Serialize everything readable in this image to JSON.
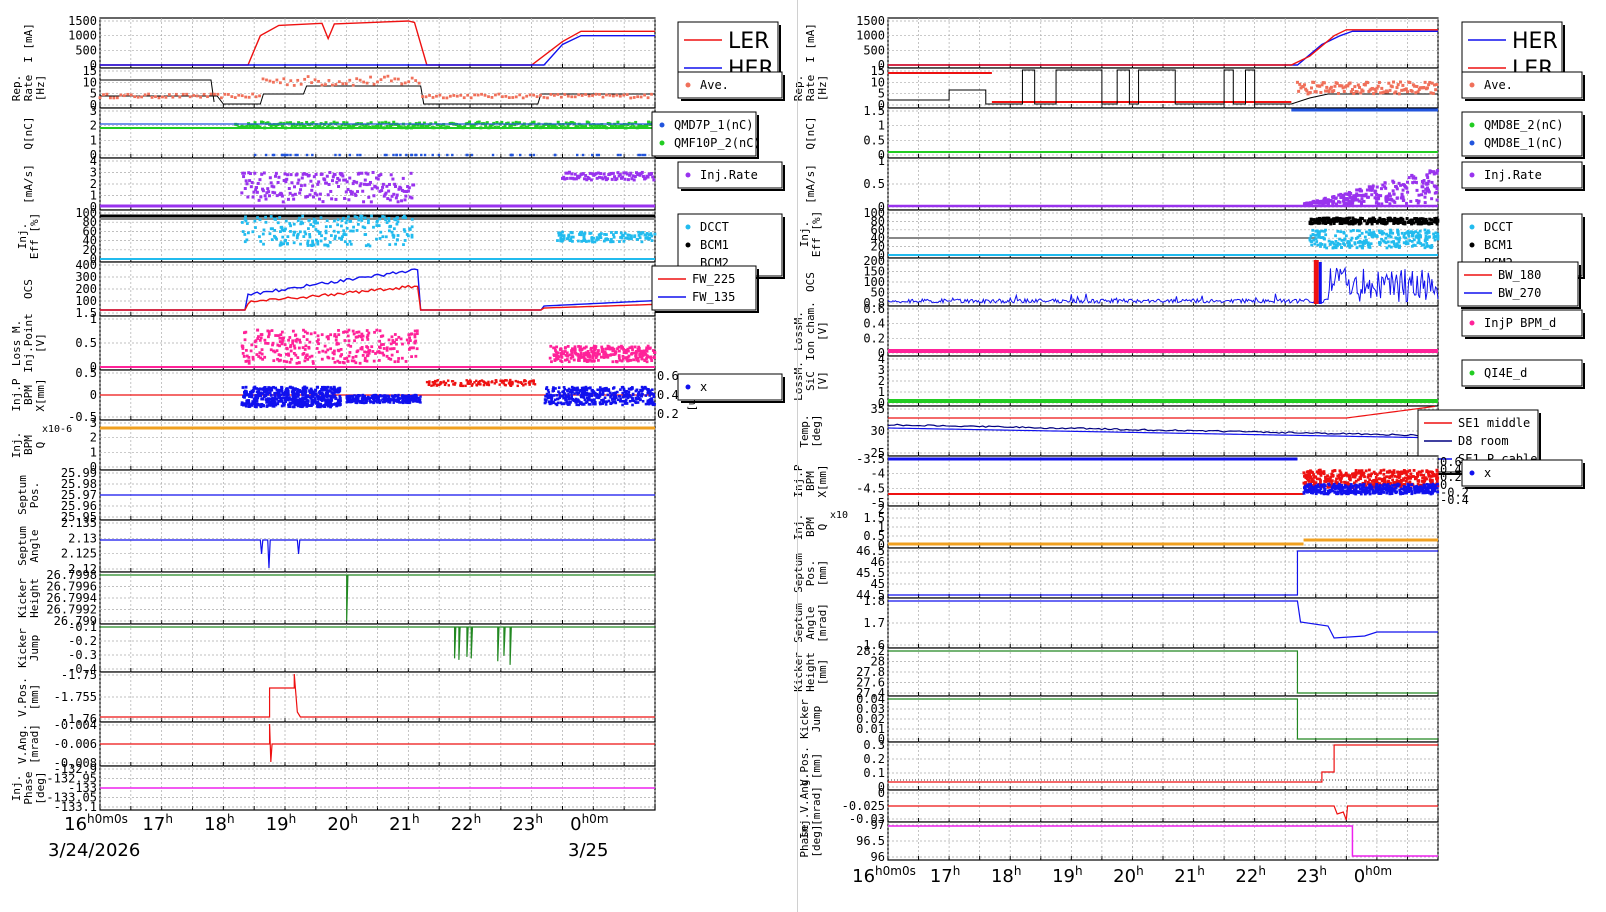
{
  "colors": {
    "red": "#ee1111",
    "blue": "#1111ee",
    "green": "#22cc22",
    "blue_dots": "#2255dd",
    "purple": "#9933ee",
    "cyan": "#22bbee",
    "black": "#000000",
    "grey": "#888888",
    "salmon": "#f0705a",
    "pink": "#ff2299",
    "orange": "#f0a020",
    "magenta": "#ee22ee",
    "dgreen": "#228822",
    "navy": "#000080",
    "ion": "#6666ff"
  },
  "left": {
    "xticks": [
      "16h0m0s",
      "17h",
      "18h",
      "19h",
      "20h",
      "21h",
      "22h",
      "23h",
      "0h0m"
    ],
    "date_labels": [
      "3/24/2026",
      "3/25"
    ],
    "panels": [
      {
        "id": "current",
        "ylabel": [
          "I [mA]"
        ],
        "yticks": [
          "1500",
          "1000",
          "500",
          "0"
        ],
        "legend": [
          {
            "name": "LER",
            "color": "red",
            "kind": "line"
          },
          {
            "name": "HER",
            "color": "blue",
            "kind": "line"
          }
        ]
      },
      {
        "id": "rep",
        "ylabel": [
          "Rep.",
          "Rate",
          "[Hz]"
        ],
        "yticks": [
          "15",
          "10",
          "5",
          "0"
        ],
        "legend": [
          {
            "name": "Ave.",
            "color": "salmon",
            "kind": "dot"
          }
        ]
      },
      {
        "id": "q",
        "ylabel": [
          "Q[nC]"
        ],
        "yticks": [
          "3",
          "2",
          "1",
          "0"
        ],
        "legend": [
          {
            "name": "QMD7P_1(nC)",
            "color": "blue_dots",
            "kind": "dot"
          },
          {
            "name": "QMF10P_2(nC)",
            "color": "green",
            "kind": "dot"
          }
        ]
      },
      {
        "id": "injrate",
        "ylabel": [
          "[mA/s]"
        ],
        "yticks": [
          "4",
          "3",
          "2",
          "1",
          "0"
        ],
        "legend": [
          {
            "name": "Inj.Rate",
            "color": "purple",
            "kind": "dot"
          }
        ]
      },
      {
        "id": "eff",
        "ylabel": [
          "Inj.",
          "Eff [%]"
        ],
        "yticks": [
          "100",
          "80",
          "60",
          "40",
          "20",
          "0"
        ],
        "legend": [
          {
            "name": "DCCT",
            "color": "cyan",
            "kind": "dot"
          },
          {
            "name": "BCM1",
            "color": "black",
            "kind": "dot"
          },
          {
            "name": "BCM2",
            "color": "grey",
            "kind": "none"
          }
        ]
      },
      {
        "id": "ocs",
        "ylabel": [
          "OCS"
        ],
        "yticks": [
          "400",
          "300",
          "200",
          "100",
          "1.5"
        ],
        "legend": [
          {
            "name": "FW_225",
            "color": "red",
            "kind": "line"
          },
          {
            "name": "FW_135",
            "color": "blue",
            "kind": "line"
          }
        ]
      },
      {
        "id": "lossm",
        "ylabel": [
          "Loss M.",
          "Inj.Point",
          "[V]"
        ],
        "yticks": [
          "1",
          "0.5",
          "0"
        ],
        "legend": []
      },
      {
        "id": "bpm",
        "ylabel": [
          "Inj.P",
          "BPM",
          "X[mm]"
        ],
        "yticks": [
          "0.5",
          "0",
          "-0.5"
        ],
        "ylabel_right": "Y[mm]",
        "yticks_right": [
          "0.6",
          "0.4",
          "0.2"
        ],
        "legend": [
          {
            "name": "x",
            "color": "blue",
            "kind": "dot"
          }
        ]
      },
      {
        "id": "bpmq",
        "ylabel": [
          "Inj.",
          "BPM",
          "Q"
        ],
        "yticks": [
          "3",
          "2",
          "1",
          "0"
        ],
        "exp": "x10-6",
        "legend": []
      },
      {
        "id": "seppos",
        "ylabel": [
          "Septum",
          "Pos."
        ],
        "yticks": [
          "25.99",
          "25.98",
          "25.97",
          "25.96",
          "25.95"
        ],
        "legend": []
      },
      {
        "id": "sepang",
        "ylabel": [
          "Septum",
          "Angle"
        ],
        "yticks": [
          "2.135",
          "2.13",
          "2.125",
          "2.12"
        ],
        "legend": []
      },
      {
        "id": "kheight",
        "ylabel": [
          "Kicker",
          "Height"
        ],
        "yticks": [
          "26.7998",
          "26.7996",
          "26.7994",
          "26.7992",
          "26.799"
        ],
        "legend": []
      },
      {
        "id": "kjump",
        "ylabel": [
          "Kicker",
          "Jump"
        ],
        "yticks": [
          "-0.1",
          "-0.2",
          "-0.3",
          "-0.4"
        ],
        "legend": []
      },
      {
        "id": "vpos",
        "ylabel": [
          "V.Pos.",
          "[mm]"
        ],
        "yticks": [
          "-1.75",
          "-1.755",
          "-1.76"
        ],
        "legend": []
      },
      {
        "id": "vang",
        "ylabel": [
          "V.Ang.",
          "[mrad]"
        ],
        "yticks": [
          "-0.004",
          "-0.006",
          "-0.008"
        ],
        "legend": []
      },
      {
        "id": "phase",
        "ylabel": [
          "Inj.",
          "Phase",
          "[deg]"
        ],
        "yticks": [
          "-132.9",
          "-132.95",
          "-133",
          "-133.05",
          "-133.1"
        ],
        "legend": []
      }
    ]
  },
  "right": {
    "xticks": [
      "16h0m0s",
      "17h",
      "18h",
      "19h",
      "20h",
      "21h",
      "22h",
      "23h",
      "0h0m"
    ],
    "panels": [
      {
        "id": "current",
        "ylabel": [
          "I [mA]"
        ],
        "yticks": [
          "1500",
          "1000",
          "500",
          "0"
        ],
        "legend": [
          {
            "name": "HER",
            "color": "blue",
            "kind": "line"
          },
          {
            "name": "LER",
            "color": "red",
            "kind": "line"
          }
        ]
      },
      {
        "id": "rep",
        "ylabel": [
          "Rep.",
          "Rate",
          "[Hz]"
        ],
        "yticks": [
          "15",
          "10",
          "5",
          "0"
        ],
        "legend": [
          {
            "name": "Ave.",
            "color": "salmon",
            "kind": "dot"
          }
        ]
      },
      {
        "id": "q",
        "ylabel": [
          "Q[nC]"
        ],
        "yticks": [
          "1.5",
          "1",
          "0.5",
          "0"
        ],
        "legend": [
          {
            "name": "QMD8E_2(nC)",
            "color": "green",
            "kind": "dot"
          },
          {
            "name": "QMD8E_1(nC)",
            "color": "blue_dots",
            "kind": "dot"
          }
        ]
      },
      {
        "id": "injrate",
        "ylabel": [
          "[mA/s]"
        ],
        "yticks": [
          "1",
          "0.5",
          "0"
        ],
        "legend": [
          {
            "name": "Inj.Rate",
            "color": "purple",
            "kind": "dot"
          }
        ]
      },
      {
        "id": "eff",
        "ylabel": [
          "Inj.",
          "Eff [%]"
        ],
        "yticks": [
          "100",
          "80",
          "60",
          "40",
          "20",
          "0"
        ],
        "legend": [
          {
            "name": "DCCT",
            "color": "cyan",
            "kind": "dot"
          },
          {
            "name": "BCM1",
            "color": "black",
            "kind": "dot"
          },
          {
            "name": "BCM2",
            "color": "grey",
            "kind": "none"
          }
        ]
      },
      {
        "id": "ocs",
        "ylabel": [
          "OCS"
        ],
        "yticks": [
          "200",
          "150",
          "100",
          "50",
          "0.8"
        ],
        "legend": [
          {
            "name": "BW_180",
            "color": "red",
            "kind": "line"
          },
          {
            "name": "BW_270",
            "color": "blue",
            "kind": "line"
          }
        ]
      },
      {
        "id": "lossm",
        "ylabel": [
          "LossM.",
          "Ion cham.",
          "[V]"
        ],
        "yticks": [
          "0.6",
          "0.4",
          "0.2",
          "0"
        ],
        "legend": [
          {
            "name": "InjP BPM_d",
            "color": "pink",
            "kind": "dot"
          }
        ]
      },
      {
        "id": "sic",
        "ylabel": [
          "LossM.",
          "SiC",
          "[V]"
        ],
        "yticks": [
          "4",
          "3",
          "2",
          "1",
          "0"
        ],
        "legend": [
          {
            "name": "QI4E_d",
            "color": "green",
            "kind": "dot"
          }
        ]
      },
      {
        "id": "temp",
        "ylabel": [
          "Temp.",
          "[deg]"
        ],
        "yticks": [
          "35",
          "30",
          "25"
        ],
        "legend": [
          {
            "name": "SE1 middle",
            "color": "red",
            "kind": "line"
          },
          {
            "name": "D8 room",
            "color": "navy",
            "kind": "line"
          },
          {
            "name": "SE1 P.cable",
            "color": "blue",
            "kind": "line"
          }
        ]
      },
      {
        "id": "bpm",
        "ylabel": [
          "Inj.P",
          "BPM",
          "X[mm]"
        ],
        "yticks": [
          "-3.5",
          "-4",
          "-4.5",
          "-5"
        ],
        "yticks_right": [
          "0.6",
          "0.4",
          "0.2",
          "0",
          "-0.2",
          "-0.4"
        ],
        "legend": [
          {
            "name": "x",
            "color": "blue",
            "kind": "dot"
          }
        ]
      },
      {
        "id": "bpmq",
        "ylabel": [
          "Inj.",
          "BPM",
          "Q"
        ],
        "yticks": [
          "2",
          "1.5",
          "1",
          "0.5",
          "0"
        ],
        "exp": "x10",
        "legend": []
      },
      {
        "id": "seppos",
        "ylabel": [
          "Septum",
          "Pos.",
          "[mm]"
        ],
        "yticks": [
          "46.5",
          "46",
          "45.5",
          "45",
          "44.5"
        ],
        "legend": []
      },
      {
        "id": "sepang",
        "ylabel": [
          "Septum",
          "Angle",
          "[mrad]"
        ],
        "yticks": [
          "1.8",
          "1.7",
          "1.6"
        ],
        "legend": []
      },
      {
        "id": "kheight",
        "ylabel": [
          "Kicker",
          "Height",
          "[mm]"
        ],
        "yticks": [
          "28.2",
          "28",
          "27.8",
          "27.6",
          "27.4"
        ],
        "legend": []
      },
      {
        "id": "kjump",
        "ylabel": [
          "Kicker",
          "Jump"
        ],
        "yticks": [
          "0.04",
          "0.03",
          "0.02",
          "0.01",
          "0"
        ],
        "legend": []
      },
      {
        "id": "vpos",
        "ylabel": [
          "V.Pos.",
          "[mm]"
        ],
        "yticks": [
          "0.3",
          "0.2",
          "0.1",
          "0"
        ],
        "legend": []
      },
      {
        "id": "vang",
        "ylabel": [
          "Inj.V.Ang.",
          "[mrad]"
        ],
        "yticks": [
          "0",
          "-0.025",
          "-0.03"
        ],
        "legend": []
      },
      {
        "id": "phase",
        "ylabel": [
          "Phase",
          "[deg]"
        ],
        "yticks": [
          "97",
          "96.5",
          "96"
        ],
        "legend": []
      }
    ]
  },
  "chart_data": [
    {
      "type": "line",
      "title": "",
      "x_unit": "hours",
      "xlim": [
        16,
        25
      ],
      "series": [
        {
          "name": "LER",
          "points": [
            [
              16,
              0
            ],
            [
              18.4,
              0
            ],
            [
              18.6,
              1000
            ],
            [
              18.9,
              1350
            ],
            [
              19.6,
              1420
            ],
            [
              19.7,
              900
            ],
            [
              19.8,
              1400
            ],
            [
              21,
              1500
            ],
            [
              21.1,
              1450
            ],
            [
              21.3,
              0
            ],
            [
              23,
              0
            ],
            [
              23.5,
              800
            ],
            [
              23.8,
              1150
            ],
            [
              25,
              1150
            ]
          ]
        },
        {
          "name": "HER",
          "points": [
            [
              16,
              0
            ],
            [
              23.2,
              0
            ],
            [
              23.5,
              700
            ],
            [
              23.8,
              1000
            ],
            [
              25,
              1000
            ]
          ]
        }
      ]
    },
    {
      "type": "line",
      "title": "",
      "x_unit": "hours",
      "xlim": [
        16,
        25
      ],
      "series": [
        {
          "name": "HER",
          "points": [
            [
              16,
              0
            ],
            [
              22.7,
              0
            ],
            [
              23.1,
              700
            ],
            [
              23.4,
              1000
            ],
            [
              23.6,
              1150
            ],
            [
              25,
              1150
            ]
          ]
        },
        {
          "name": "LER",
          "points": [
            [
              16,
              0
            ],
            [
              22.6,
              0
            ],
            [
              22.9,
              300
            ],
            [
              23.3,
              1000
            ],
            [
              23.5,
              1200
            ],
            [
              25,
              1200
            ]
          ]
        }
      ]
    }
  ]
}
